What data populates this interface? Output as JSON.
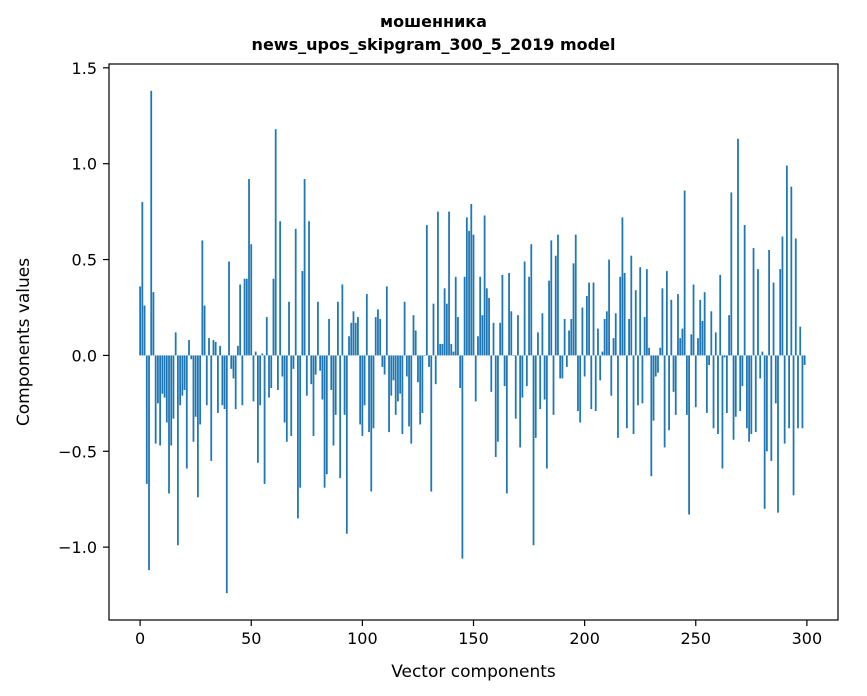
{
  "chart_data": {
    "type": "bar",
    "title_line1": "мошенника",
    "title_line2": "news_upos_skipgram_300_5_2019 model",
    "xlabel": "Vector components",
    "ylabel": "Components values",
    "xlim": [
      -14,
      314
    ],
    "ylim": [
      -1.38,
      1.52
    ],
    "xticks": [
      0,
      50,
      100,
      150,
      200,
      250,
      300
    ],
    "yticks": [
      -1.0,
      -0.5,
      0.0,
      0.5,
      1.0,
      1.5
    ],
    "ytick_labels": [
      "−1.0",
      "−0.5",
      "0.0",
      "0.5",
      "1.0",
      "1.5"
    ],
    "bar_color": "#1f77b4",
    "grid": false,
    "values": [
      0.36,
      0.8,
      0.26,
      -0.67,
      -1.12,
      1.38,
      0.33,
      -0.46,
      -0.25,
      -0.47,
      -0.2,
      -0.22,
      -0.35,
      -0.72,
      -0.47,
      -0.33,
      0.12,
      -0.99,
      -0.26,
      -0.21,
      -0.18,
      -0.59,
      0.08,
      -0.02,
      -0.45,
      -0.32,
      -0.74,
      -0.36,
      0.6,
      0.26,
      -0.26,
      0.09,
      -0.55,
      0.08,
      0.07,
      -0.3,
      0.05,
      -0.26,
      -0.28,
      -1.24,
      0.49,
      -0.07,
      -0.12,
      -0.28,
      0.05,
      0.37,
      -0.26,
      0.4,
      0.4,
      0.92,
      0.58,
      -0.24,
      0.02,
      -0.56,
      -0.26,
      0.01,
      -0.67,
      0.2,
      -0.22,
      -0.17,
      0.4,
      1.18,
      -0.18,
      0.7,
      -0.11,
      -0.35,
      -0.45,
      0.28,
      -0.42,
      -0.07,
      0.66,
      -0.85,
      -0.69,
      0.44,
      0.92,
      -0.21,
      0.7,
      -0.15,
      -0.42,
      -0.1,
      0.28,
      -0.08,
      -0.23,
      -0.69,
      -0.62,
      0.19,
      -0.18,
      -0.47,
      -0.31,
      0.28,
      -0.64,
      0.37,
      -0.31,
      -0.93,
      0.1,
      0.17,
      0.23,
      0.17,
      0.2,
      -0.36,
      -0.42,
      -0.26,
      0.32,
      -0.4,
      -0.71,
      -0.38,
      0.2,
      0.24,
      0.19,
      -0.06,
      -0.1,
      0.36,
      -0.4,
      -0.21,
      -0.13,
      -0.31,
      -0.24,
      -0.2,
      -0.41,
      0.28,
      -0.11,
      -0.37,
      -0.46,
      0.21,
      0.13,
      -0.14,
      -0.36,
      -0.3,
      0.0,
      0.68,
      -0.06,
      -0.71,
      0.27,
      -0.15,
      0.75,
      0.06,
      0.06,
      0.35,
      0.27,
      0.75,
      0.06,
      0.02,
      0.41,
      0.2,
      -0.17,
      -1.06,
      0.41,
      0.72,
      0.65,
      0.79,
      0.63,
      -0.24,
      0.1,
      0.41,
      0.21,
      0.73,
      0.35,
      0.3,
      -0.19,
      0.17,
      -0.53,
      -0.45,
      0.17,
      0.42,
      -0.16,
      -0.72,
      0.43,
      0.23,
      0.0,
      -0.33,
      0.21,
      -0.48,
      -0.22,
      0.49,
      -0.16,
      0.41,
      0.58,
      -0.99,
      -0.43,
      0.12,
      -0.28,
      0.22,
      -0.23,
      -0.59,
      0.39,
      0.6,
      -0.31,
      0.52,
      0.63,
      -0.12,
      -0.12,
      0.19,
      -0.06,
      0.13,
      0.19,
      0.48,
      0.63,
      -0.29,
      -0.35,
      0.25,
      -0.11,
      0.31,
      0.38,
      -0.28,
      0.38,
      -0.29,
      0.14,
      -0.13,
      0.02,
      0.19,
      0.23,
      0.5,
      -0.21,
      0.09,
      0.22,
      -0.43,
      0.41,
      0.72,
      0.43,
      -0.38,
      0.19,
      0.52,
      -0.41,
      0.34,
      -0.26,
      0.46,
      -0.25,
      0.2,
      0.45,
      0.04,
      -0.63,
      -0.34,
      -0.11,
      -0.09,
      0.04,
      0.35,
      -0.48,
      0.44,
      -0.39,
      0.29,
      -0.19,
      -0.31,
      0.32,
      0.09,
      0.14,
      0.86,
      -0.31,
      -0.83,
      0.11,
      0.37,
      -0.27,
      0.09,
      0.29,
      0.18,
      0.33,
      -0.3,
      -0.05,
      0.23,
      -0.38,
      0.12,
      -0.41,
      0.42,
      -0.59,
      -0.01,
      -0.3,
      0.21,
      0.85,
      -0.44,
      -0.32,
      1.13,
      -0.29,
      -0.16,
      0.68,
      -0.38,
      -0.45,
      -0.41,
      0.56,
      -0.4,
      0.45,
      -0.12,
      0.02,
      -0.8,
      -0.5,
      0.55,
      -0.55,
      0.38,
      -0.25,
      -0.82,
      0.45,
      0.62,
      -0.46,
      0.99,
      -0.38,
      0.88,
      -0.73,
      0.61,
      -0.38,
      0.15,
      -0.38,
      -0.05
    ]
  }
}
